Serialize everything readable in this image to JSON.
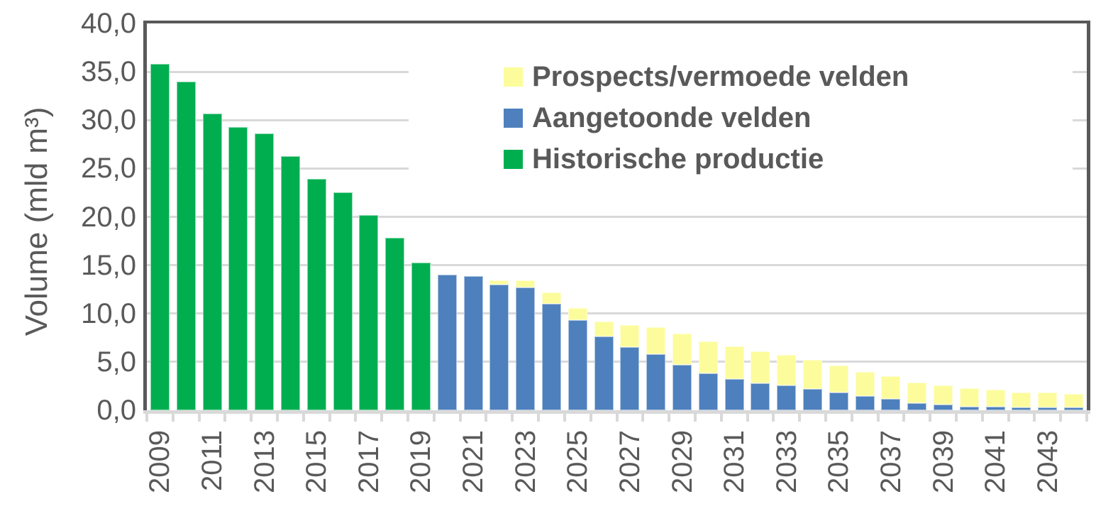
{
  "chart_data": {
    "type": "bar-stacked",
    "title": "",
    "ylabel": "Volume (mld m³)",
    "xlabel": "",
    "ylim": [
      0,
      40
    ],
    "grid": "horizontal",
    "legend_position": "top-right-inside",
    "x": [
      2009,
      2010,
      2011,
      2012,
      2013,
      2014,
      2015,
      2016,
      2017,
      2018,
      2019,
      2020,
      2021,
      2022,
      2023,
      2024,
      2025,
      2026,
      2027,
      2028,
      2029,
      2030,
      2031,
      2032,
      2033,
      2034,
      2035,
      2036,
      2037,
      2038,
      2039,
      2040,
      2041,
      2042,
      2043,
      2044
    ],
    "series": [
      {
        "name": "Prospects/vermoede velden",
        "color": "#fcfc9c",
        "values": [
          0,
          0,
          0,
          0,
          0,
          0,
          0,
          0,
          0,
          0,
          0,
          0,
          0,
          0.4,
          0.7,
          1.2,
          1.3,
          1.6,
          2.3,
          2.8,
          3.2,
          3.3,
          3.4,
          3.3,
          3.1,
          3.0,
          2.8,
          2.5,
          2.3,
          2.2,
          2.0,
          1.9,
          1.7,
          1.5,
          1.5,
          1.4
        ]
      },
      {
        "name": "Aangetoonde velden",
        "color": "#4e80bd",
        "values": [
          0,
          0,
          0,
          0,
          0,
          0,
          0,
          0,
          0,
          0,
          0,
          14.0,
          13.9,
          13.0,
          12.7,
          11.0,
          9.3,
          7.6,
          6.5,
          5.8,
          4.7,
          3.8,
          3.2,
          2.8,
          2.6,
          2.2,
          1.8,
          1.5,
          1.2,
          0.7,
          0.6,
          0.4,
          0.4,
          0.3,
          0.3,
          0.3
        ]
      },
      {
        "name": "Historische productie",
        "color": "#00ae50",
        "values": [
          35.8,
          34.0,
          30.7,
          29.3,
          28.6,
          26.3,
          23.9,
          22.5,
          20.2,
          17.8,
          15.3,
          0,
          0,
          0,
          0,
          0,
          0,
          0,
          0,
          0,
          0,
          0,
          0,
          0,
          0,
          0,
          0,
          0,
          0,
          0,
          0,
          0,
          0,
          0,
          0,
          0
        ]
      }
    ]
  },
  "y_axis": {
    "tick_labels": [
      "40,0",
      "35,0",
      "30,0",
      "25,0",
      "20,0",
      "15,0",
      "10,0",
      "5,0",
      "0,0"
    ],
    "tick_values": [
      40,
      35,
      30,
      25,
      20,
      15,
      10,
      5,
      0
    ]
  },
  "x_axis": {
    "tick_labels": [
      "2009",
      "2011",
      "2013",
      "2015",
      "2017",
      "2019",
      "2021",
      "2023",
      "2025",
      "2027",
      "2029",
      "2031",
      "2033",
      "2035",
      "2037",
      "2039",
      "2041",
      "2043"
    ]
  },
  "colors": {
    "axis_line": "#595959",
    "gridline": "#d9d9d9",
    "text": "#595959",
    "background": "#ffffff"
  }
}
